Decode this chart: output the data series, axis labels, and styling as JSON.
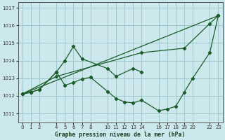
{
  "background_color": "#cce8ec",
  "grid_color": "#9fc8cc",
  "line_color": "#1a5c2a",
  "xlabel": "Graphe pression niveau de la mer (hPa)",
  "ylim": [
    1010.5,
    1017.3
  ],
  "xlim": [
    -0.5,
    23.5
  ],
  "yticks": [
    1011,
    1012,
    1013,
    1014,
    1015,
    1016,
    1017
  ],
  "xticks": [
    0,
    1,
    2,
    4,
    5,
    6,
    7,
    8,
    10,
    11,
    12,
    13,
    14,
    16,
    17,
    18,
    19,
    20,
    22,
    23
  ],
  "line1_x": [
    0,
    1,
    2,
    4,
    5,
    6,
    7,
    10,
    11,
    13,
    14
  ],
  "line1_y": [
    1012.1,
    1012.2,
    1012.35,
    1013.35,
    1014.0,
    1014.8,
    1014.1,
    1013.55,
    1013.1,
    1013.55,
    1013.35
  ],
  "line2_x": [
    0,
    1,
    2,
    4,
    5,
    6,
    7,
    8,
    10,
    11,
    12,
    13,
    14,
    16,
    17,
    18,
    19,
    20,
    22,
    23
  ],
  "line2_y": [
    1012.1,
    1012.2,
    1012.35,
    1013.35,
    1012.6,
    1012.75,
    1012.95,
    1013.05,
    1012.25,
    1011.85,
    1011.65,
    1011.6,
    1011.75,
    1011.15,
    1011.25,
    1011.4,
    1012.2,
    1013.0,
    1014.45,
    1016.55
  ],
  "line3_x": [
    0,
    4,
    14,
    19,
    22,
    23
  ],
  "line3_y": [
    1012.1,
    1013.1,
    1014.45,
    1014.7,
    1016.1,
    1016.55
  ],
  "line4_x": [
    0,
    23
  ],
  "line4_y": [
    1012.1,
    1016.55
  ],
  "ylabel_ticks": [
    1011,
    1012,
    1013,
    1014,
    1015,
    1016,
    1017
  ]
}
